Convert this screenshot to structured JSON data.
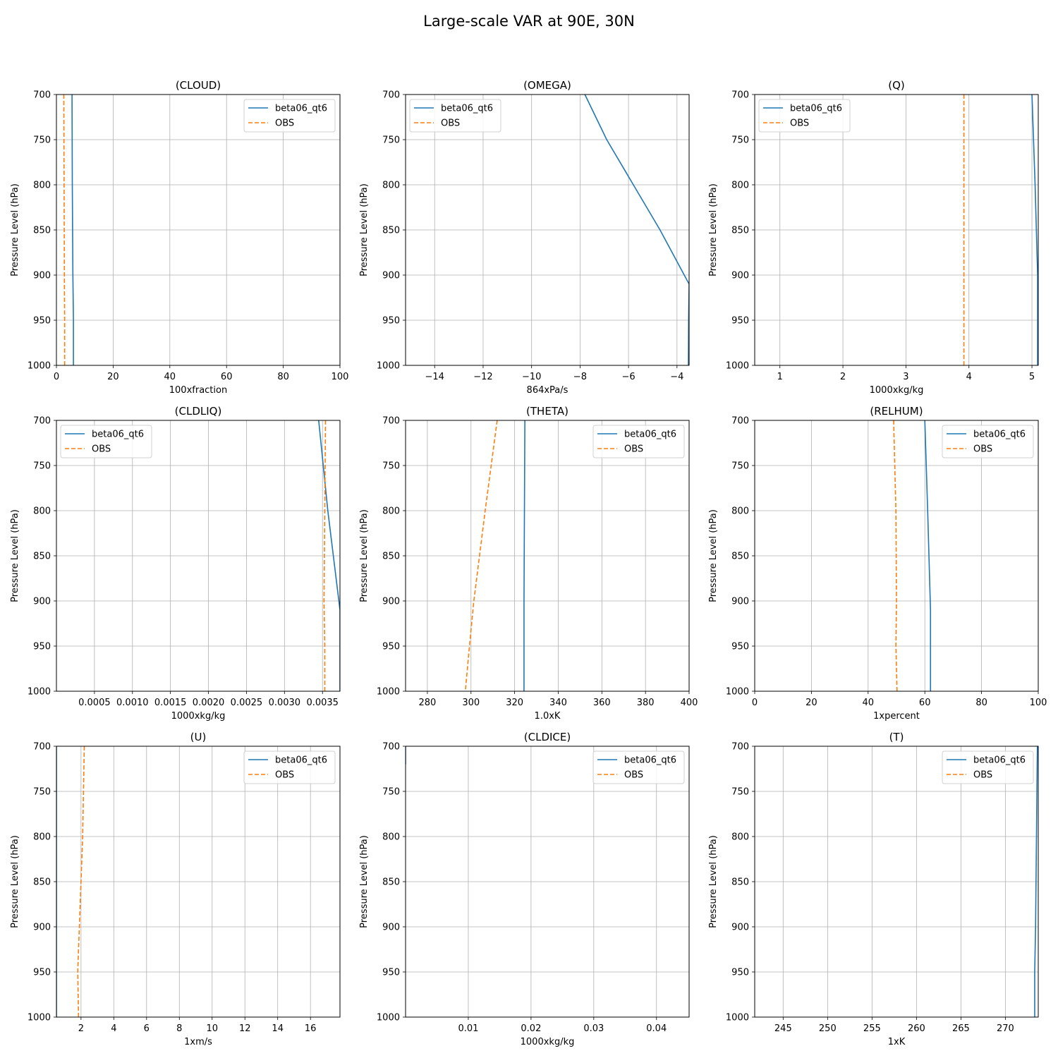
{
  "figure": {
    "title": "Large-scale VAR at 90E, 30N"
  },
  "chart_data": [
    {
      "type": "line",
      "title": "(CLOUD)",
      "xlabel": "100xfraction",
      "ylabel": "Pressure Level (hPa)",
      "xlim": [
        0,
        100
      ],
      "ylim": [
        1000,
        700
      ],
      "y_inverted": true,
      "grid": true,
      "legend": "upper right",
      "xticks": [
        "0",
        "20",
        "40",
        "60",
        "80",
        "100"
      ],
      "xtick_values": [
        0,
        20,
        40,
        60,
        80,
        100
      ],
      "yticks": [
        "700",
        "750",
        "800",
        "850",
        "900",
        "950",
        "1000"
      ],
      "ytick_values": [
        700,
        750,
        800,
        850,
        900,
        950,
        1000
      ],
      "series": [
        {
          "name": "beta06_qt6",
          "color": "#1f77b4",
          "style": "solid",
          "x": [
            5.5,
            5.6,
            5.8,
            6.0,
            6.0
          ],
          "y": [
            700,
            800,
            900,
            950,
            1000
          ]
        },
        {
          "name": "OBS",
          "color": "#ff7f0e",
          "style": "dashed",
          "x": [
            2.6,
            2.7,
            2.8,
            2.9,
            2.9
          ],
          "y": [
            700,
            800,
            900,
            950,
            1000
          ]
        }
      ]
    },
    {
      "type": "line",
      "title": "(OMEGA)",
      "xlabel": "864xPa/s",
      "ylabel": "Pressure Level (hPa)",
      "xlim": [
        -15.2,
        -3.5
      ],
      "ylim": [
        1000,
        700
      ],
      "y_inverted": true,
      "grid": true,
      "legend": "upper left",
      "xticks": [
        "−14",
        "−12",
        "−10",
        "−8",
        "−6",
        "−4"
      ],
      "xtick_values": [
        -14,
        -12,
        -10,
        -8,
        -6,
        -4
      ],
      "yticks": [
        "700",
        "750",
        "800",
        "850",
        "900",
        "950",
        "1000"
      ],
      "ytick_values": [
        700,
        750,
        800,
        850,
        900,
        950,
        1000
      ],
      "series": [
        {
          "name": "beta06_qt6",
          "color": "#1f77b4",
          "style": "solid",
          "x": [
            -7.8,
            -6.9,
            -5.8,
            -4.7,
            -3.5,
            -3.52,
            -3.53
          ],
          "y": [
            700,
            750,
            800,
            850,
            910,
            950,
            1000
          ]
        },
        {
          "name": "OBS",
          "color": "#ff7f0e",
          "style": "dashed",
          "x": [],
          "y": []
        }
      ]
    },
    {
      "type": "line",
      "title": "(Q)",
      "xlabel": "1000xkg/kg",
      "ylabel": "Pressure Level (hPa)",
      "xlim": [
        0.6,
        5.1
      ],
      "ylim": [
        1000,
        700
      ],
      "y_inverted": true,
      "grid": true,
      "legend": "upper left",
      "xticks": [
        "1",
        "2",
        "3",
        "4",
        "5"
      ],
      "xtick_values": [
        1,
        2,
        3,
        4,
        5
      ],
      "yticks": [
        "700",
        "750",
        "800",
        "850",
        "900",
        "950",
        "1000"
      ],
      "ytick_values": [
        700,
        750,
        800,
        850,
        900,
        950,
        1000
      ],
      "series": [
        {
          "name": "beta06_qt6",
          "color": "#1f77b4",
          "style": "solid",
          "x": [
            5.0,
            5.05,
            5.09,
            5.09,
            5.09
          ],
          "y": [
            700,
            800,
            900,
            950,
            1000
          ]
        },
        {
          "name": "OBS",
          "color": "#ff7f0e",
          "style": "dashed",
          "x": [
            3.92,
            3.92,
            3.92,
            3.92,
            3.92
          ],
          "y": [
            700,
            800,
            900,
            950,
            1000
          ]
        }
      ]
    },
    {
      "type": "line",
      "title": "(CLDLIQ)",
      "xlabel": "1000xkg/kg",
      "ylabel": "Pressure Level (hPa)",
      "xlim": [
        0.0,
        0.00373
      ],
      "ylim": [
        1000,
        700
      ],
      "y_inverted": true,
      "grid": true,
      "legend": "upper left",
      "xticks": [
        "0.0005",
        "0.0010",
        "0.0015",
        "0.0020",
        "0.0025",
        "0.0030",
        "0.0035"
      ],
      "xtick_values": [
        0.0005,
        0.001,
        0.0015,
        0.002,
        0.0025,
        0.003,
        0.0035
      ],
      "yticks": [
        "700",
        "750",
        "800",
        "850",
        "900",
        "950",
        "1000"
      ],
      "ytick_values": [
        700,
        750,
        800,
        850,
        900,
        950,
        1000
      ],
      "series": [
        {
          "name": "beta06_qt6",
          "color": "#1f77b4",
          "style": "solid",
          "x": [
            0.00345,
            0.00357,
            0.00373,
            0.00373,
            0.00373
          ],
          "y": [
            700,
            800,
            910,
            950,
            1000
          ]
        },
        {
          "name": "OBS",
          "color": "#ff7f0e",
          "style": "dashed",
          "x": [
            0.00354,
            0.00353,
            0.00352,
            0.00353,
            0.00353
          ],
          "y": [
            700,
            800,
            900,
            950,
            1000
          ]
        }
      ]
    },
    {
      "type": "line",
      "title": "(THETA)",
      "xlabel": "1.0xK",
      "ylabel": "Pressure Level (hPa)",
      "xlim": [
        270,
        400
      ],
      "ylim": [
        1000,
        700
      ],
      "y_inverted": true,
      "grid": true,
      "legend": "upper right",
      "xticks": [
        "280",
        "300",
        "320",
        "340",
        "360",
        "380",
        "400"
      ],
      "xtick_values": [
        280,
        300,
        320,
        340,
        360,
        380,
        400
      ],
      "yticks": [
        "700",
        "750",
        "800",
        "850",
        "900",
        "950",
        "1000"
      ],
      "ytick_values": [
        700,
        750,
        800,
        850,
        900,
        950,
        1000
      ],
      "series": [
        {
          "name": "beta06_qt6",
          "color": "#1f77b4",
          "style": "solid",
          "x": [
            324.7,
            324.5,
            324.3,
            324.3,
            324.3
          ],
          "y": [
            700,
            800,
            900,
            950,
            1000
          ]
        },
        {
          "name": "OBS",
          "color": "#ff7f0e",
          "style": "dashed",
          "x": [
            312,
            306.5,
            301.3,
            299.3,
            297.4
          ],
          "y": [
            700,
            800,
            900,
            950,
            1000
          ]
        }
      ]
    },
    {
      "type": "line",
      "title": "(RELHUM)",
      "xlabel": "1xpercent",
      "ylabel": "Pressure Level (hPa)",
      "xlim": [
        0,
        100
      ],
      "ylim": [
        1000,
        700
      ],
      "y_inverted": true,
      "grid": true,
      "legend": "upper right",
      "xticks": [
        "0",
        "20",
        "40",
        "60",
        "80",
        "100"
      ],
      "xtick_values": [
        0,
        20,
        40,
        60,
        80,
        100
      ],
      "yticks": [
        "700",
        "750",
        "800",
        "850",
        "900",
        "950",
        "1000"
      ],
      "ytick_values": [
        700,
        750,
        800,
        850,
        900,
        950,
        1000
      ],
      "series": [
        {
          "name": "beta06_qt6",
          "color": "#1f77b4",
          "style": "solid",
          "x": [
            60,
            61,
            62,
            62,
            62
          ],
          "y": [
            700,
            800,
            910,
            950,
            1000
          ]
        },
        {
          "name": "OBS",
          "color": "#ff7f0e",
          "style": "dashed",
          "x": [
            49,
            49.8,
            50,
            49.8,
            50.2
          ],
          "y": [
            700,
            800,
            900,
            950,
            1000
          ]
        }
      ]
    },
    {
      "type": "line",
      "title": "(U)",
      "xlabel": "1xm/s",
      "ylabel": "Pressure Level (hPa)",
      "xlim": [
        0.5,
        17.8
      ],
      "ylim": [
        1000,
        700
      ],
      "y_inverted": true,
      "grid": true,
      "legend": "upper right",
      "xticks": [
        "2",
        "4",
        "6",
        "8",
        "10",
        "12",
        "14",
        "16"
      ],
      "xtick_values": [
        2,
        4,
        6,
        8,
        10,
        12,
        14,
        16
      ],
      "yticks": [
        "700",
        "750",
        "800",
        "850",
        "900",
        "950",
        "1000"
      ],
      "ytick_values": [
        700,
        750,
        800,
        850,
        900,
        950,
        1000
      ],
      "series": [
        {
          "name": "beta06_qt6",
          "color": "#1f77b4",
          "style": "solid",
          "x": [
            0.5,
            0.5,
            0.5,
            0.5,
            0.5
          ],
          "y": [
            700,
            800,
            900,
            950,
            1000
          ]
        },
        {
          "name": "OBS",
          "color": "#ff7f0e",
          "style": "dashed",
          "x": [
            2.2,
            2.1,
            1.9,
            1.8,
            1.85
          ],
          "y": [
            700,
            800,
            900,
            950,
            1000
          ]
        }
      ]
    },
    {
      "type": "line",
      "title": "(CLDICE)",
      "xlabel": "1000xkg/kg",
      "ylabel": "Pressure Level (hPa)",
      "xlim": [
        0.0,
        0.0452
      ],
      "ylim": [
        1000,
        700
      ],
      "y_inverted": true,
      "grid": true,
      "legend": "upper right",
      "xticks": [
        "0.01",
        "0.02",
        "0.03",
        "0.04"
      ],
      "xtick_values": [
        0.01,
        0.02,
        0.03,
        0.04
      ],
      "yticks": [
        "700",
        "750",
        "800",
        "850",
        "900",
        "950",
        "1000"
      ],
      "ytick_values": [
        700,
        750,
        800,
        850,
        900,
        950,
        1000
      ],
      "series": [
        {
          "name": "beta06_qt6",
          "color": "#1f77b4",
          "style": "solid",
          "x": [
            0.0,
            0.0,
            0.0
          ],
          "y": [
            700,
            710,
            720
          ]
        },
        {
          "name": "OBS",
          "color": "#ff7f0e",
          "style": "dashed",
          "x": [],
          "y": []
        }
      ]
    },
    {
      "type": "line",
      "title": "(T)",
      "xlabel": "1xK",
      "ylabel": "Pressure Level (hPa)",
      "xlim": [
        241.8,
        273.7
      ],
      "ylim": [
        1000,
        700
      ],
      "y_inverted": true,
      "grid": true,
      "legend": "upper right",
      "xticks": [
        "245",
        "250",
        "255",
        "260",
        "265",
        "270"
      ],
      "xtick_values": [
        245,
        250,
        255,
        260,
        265,
        270
      ],
      "yticks": [
        "700",
        "750",
        "800",
        "850",
        "900",
        "950",
        "1000"
      ],
      "ytick_values": [
        700,
        750,
        800,
        850,
        900,
        950,
        1000
      ],
      "series": [
        {
          "name": "beta06_qt6",
          "color": "#1f77b4",
          "style": "solid",
          "x": [
            273.6,
            273.5,
            273.4,
            273.3,
            273.3
          ],
          "y": [
            700,
            800,
            900,
            950,
            1000
          ]
        },
        {
          "name": "OBS",
          "color": "#ff7f0e",
          "style": "dashed",
          "x": [],
          "y": []
        }
      ]
    }
  ]
}
